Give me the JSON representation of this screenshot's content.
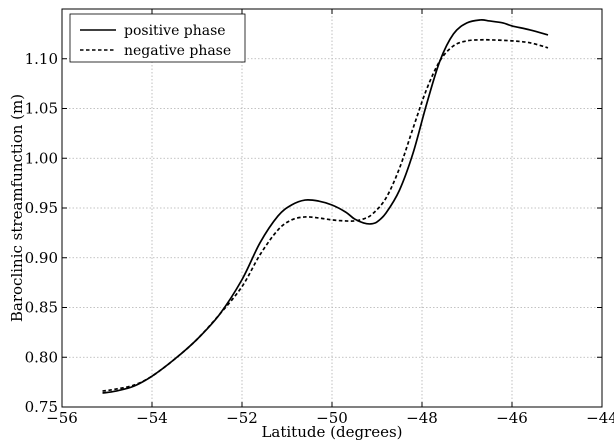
{
  "chart_data": {
    "type": "line",
    "title": "",
    "xlabel": "Latitude (degrees)",
    "ylabel": "Baroclinic streamfunction (m)",
    "xlim": [
      -56,
      -44
    ],
    "ylim": [
      0.75,
      1.15
    ],
    "xticks": [
      -56,
      -54,
      -52,
      -50,
      -48,
      -46,
      -44
    ],
    "yticks": [
      0.75,
      0.8,
      0.85,
      0.9,
      0.95,
      1.0,
      1.05,
      1.1
    ],
    "grid": true,
    "legend": "top-left",
    "series": [
      {
        "name": "positive phase",
        "style": "solid",
        "color": "#000000",
        "x": [
          -55.1,
          -54.8,
          -54.4,
          -54.0,
          -53.5,
          -53.0,
          -52.5,
          -52.0,
          -51.6,
          -51.2,
          -50.9,
          -50.6,
          -50.3,
          -50.0,
          -49.7,
          -49.5,
          -49.3,
          -49.15,
          -49.0,
          -48.8,
          -48.5,
          -48.2,
          -47.9,
          -47.6,
          -47.3,
          -47.0,
          -46.7,
          -46.5,
          -46.2,
          -46.0,
          -45.6,
          -45.2
        ],
        "y": [
          0.764,
          0.766,
          0.771,
          0.781,
          0.798,
          0.818,
          0.843,
          0.878,
          0.915,
          0.942,
          0.953,
          0.958,
          0.957,
          0.953,
          0.946,
          0.939,
          0.935,
          0.934,
          0.936,
          0.945,
          0.968,
          1.005,
          1.054,
          1.098,
          1.125,
          1.136,
          1.139,
          1.138,
          1.136,
          1.133,
          1.129,
          1.124
        ]
      },
      {
        "name": "negative phase",
        "style": "dashed",
        "color": "#000000",
        "x": [
          -55.1,
          -54.8,
          -54.4,
          -54.0,
          -53.5,
          -53.0,
          -52.5,
          -52.0,
          -51.6,
          -51.2,
          -50.9,
          -50.6,
          -50.3,
          -50.0,
          -49.7,
          -49.5,
          -49.3,
          -49.1,
          -48.8,
          -48.5,
          -48.2,
          -47.9,
          -47.6,
          -47.3,
          -47.0,
          -46.7,
          -46.5,
          -46.0,
          -45.6,
          -45.2
        ],
        "y": [
          0.766,
          0.768,
          0.772,
          0.781,
          0.798,
          0.818,
          0.843,
          0.871,
          0.903,
          0.928,
          0.938,
          0.941,
          0.94,
          0.938,
          0.937,
          0.937,
          0.939,
          0.944,
          0.96,
          0.99,
          1.03,
          1.069,
          1.098,
          1.113,
          1.118,
          1.119,
          1.119,
          1.118,
          1.116,
          1.111
        ]
      }
    ]
  }
}
